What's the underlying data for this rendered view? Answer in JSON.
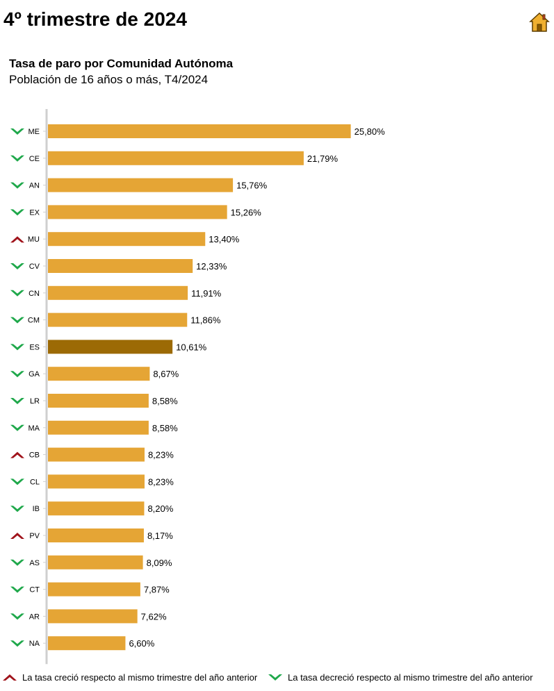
{
  "page": {
    "title": "4º trimestre de 2024",
    "home_icon": "house-icon"
  },
  "colors": {
    "bar": "#E5A535",
    "bar_highlight": "#9C6A05",
    "up": "#A0131B",
    "down": "#1FA84B",
    "axis": "#CFCFCF"
  },
  "chart_data": {
    "type": "bar",
    "orientation": "horizontal",
    "title": "Tasa de paro por Comunidad Autónoma",
    "subtitle": "Población de 16 años o más, T4/2024",
    "xlim": [
      0,
      26
    ],
    "grid": false,
    "highlight": "ES",
    "categories": [
      "ME",
      "CE",
      "AN",
      "EX",
      "MU",
      "CV",
      "CN",
      "CM",
      "ES",
      "GA",
      "LR",
      "MA",
      "CB",
      "CL",
      "IB",
      "PV",
      "AS",
      "CT",
      "AR",
      "NA"
    ],
    "values": [
      25.8,
      21.79,
      15.76,
      15.26,
      13.4,
      12.33,
      11.91,
      11.86,
      10.61,
      8.67,
      8.58,
      8.58,
      8.23,
      8.23,
      8.2,
      8.17,
      8.09,
      7.87,
      7.62,
      6.6
    ],
    "value_labels": [
      "25,80%",
      "21,79%",
      "15,76%",
      "15,26%",
      "13,40%",
      "12,33%",
      "11,91%",
      "11,86%",
      "10,61%",
      "8,67%",
      "8,58%",
      "8,58%",
      "8,23%",
      "8,23%",
      "8,20%",
      "8,17%",
      "8,09%",
      "7,87%",
      "7,62%",
      "6,60%"
    ],
    "trend": [
      "down",
      "down",
      "down",
      "down",
      "up",
      "down",
      "down",
      "down",
      "down",
      "down",
      "down",
      "down",
      "up",
      "down",
      "down",
      "up",
      "down",
      "down",
      "down",
      "down"
    ]
  },
  "legend": {
    "up_label": "La tasa creció respecto al mismo trimestre del año anterior",
    "down_label": "La tasa decreció respecto al mismo trimestre del año anterior"
  }
}
